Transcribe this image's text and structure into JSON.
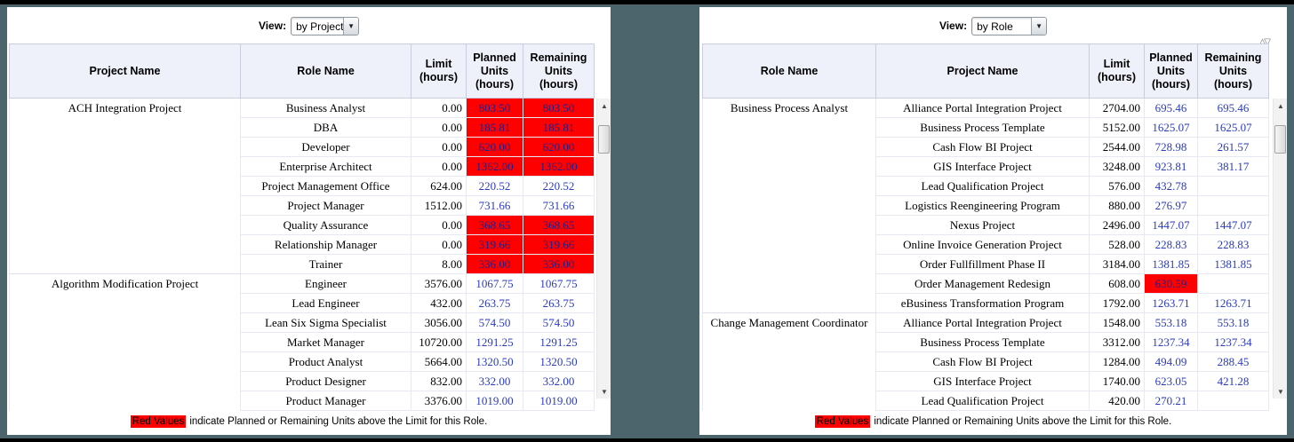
{
  "colors": {
    "page_background": "#4c656d",
    "alert_background": "#ff0000",
    "value_blue": "#2b3bc0",
    "header_background": "#eef1fa"
  },
  "legend": {
    "highlight": "Red Values",
    "text": "indicate Planned or Remaining Units above the Limit for this Role."
  },
  "scrollbar": {
    "up": "▲",
    "down": "▼"
  },
  "left_panel": {
    "view": {
      "label": "View:",
      "value": "by Project",
      "arrow": "▼"
    },
    "columns": {
      "group": "Project Name",
      "detail": "Role Name",
      "limit": "Limit\n(hours)",
      "planned": "Planned\nUnits\n(hours)",
      "remaining": "Remaining\nUnits\n(hours)"
    },
    "rows": [
      {
        "group": "ACH Integration Project",
        "detail": "Business Analyst",
        "limit": "0.00",
        "planned": "803.50",
        "remaining": "803.50",
        "planned_alert": true,
        "remaining_alert": true
      },
      {
        "group": "",
        "detail": "DBA",
        "limit": "0.00",
        "planned": "185.81",
        "remaining": "185.81",
        "planned_alert": true,
        "remaining_alert": true
      },
      {
        "group": "",
        "detail": "Developer",
        "limit": "0.00",
        "planned": "620.00",
        "remaining": "620.00",
        "planned_alert": true,
        "remaining_alert": true
      },
      {
        "group": "",
        "detail": "Enterprise Architect",
        "limit": "0.00",
        "planned": "1362.00",
        "remaining": "1362.00",
        "planned_alert": true,
        "remaining_alert": true
      },
      {
        "group": "",
        "detail": "Project Management Office",
        "limit": "624.00",
        "planned": "220.52",
        "remaining": "220.52"
      },
      {
        "group": "",
        "detail": "Project Manager",
        "limit": "1512.00",
        "planned": "731.66",
        "remaining": "731.66"
      },
      {
        "group": "",
        "detail": "Quality Assurance",
        "limit": "0.00",
        "planned": "368.65",
        "remaining": "368.65",
        "planned_alert": true,
        "remaining_alert": true
      },
      {
        "group": "",
        "detail": "Relationship Manager",
        "limit": "0.00",
        "planned": "319.66",
        "remaining": "319.66",
        "planned_alert": true,
        "remaining_alert": true
      },
      {
        "group": "",
        "detail": "Trainer",
        "limit": "8.00",
        "planned": "336.00",
        "remaining": "336.00",
        "planned_alert": true,
        "remaining_alert": true,
        "group_end": true
      },
      {
        "group": "Algorithm Modification Project",
        "detail": "Engineer",
        "limit": "3576.00",
        "planned": "1067.75",
        "remaining": "1067.75"
      },
      {
        "group": "",
        "detail": "Lead Engineer",
        "limit": "432.00",
        "planned": "263.75",
        "remaining": "263.75"
      },
      {
        "group": "",
        "detail": "Lean Six Sigma Specialist",
        "limit": "3056.00",
        "planned": "574.50",
        "remaining": "574.50"
      },
      {
        "group": "",
        "detail": "Market Manager",
        "limit": "10720.00",
        "planned": "1291.25",
        "remaining": "1291.25"
      },
      {
        "group": "",
        "detail": "Product Analyst",
        "limit": "5664.00",
        "planned": "1320.50",
        "remaining": "1320.50"
      },
      {
        "group": "",
        "detail": "Product Designer",
        "limit": "832.00",
        "planned": "332.00",
        "remaining": "332.00"
      },
      {
        "group": "",
        "detail": "Product Manager",
        "limit": "3376.00",
        "planned": "1019.00",
        "remaining": "1019.00"
      }
    ]
  },
  "right_panel": {
    "view": {
      "label": "View:",
      "value": "by Role",
      "arrow": "▼"
    },
    "sort_icons": "△▽",
    "columns": {
      "group": "Role Name",
      "detail": "Project Name",
      "limit": "Limit\n(hours)",
      "planned": "Planned\nUnits\n(hours)",
      "remaining": "Remaining\nUnits\n(hours)"
    },
    "rows": [
      {
        "group": "Business Process Analyst",
        "detail": "Alliance Portal Integration Project",
        "limit": "2704.00",
        "planned": "695.46",
        "remaining": "695.46"
      },
      {
        "group": "",
        "detail": "Business Process Template",
        "limit": "5152.00",
        "planned": "1625.07",
        "remaining": "1625.07"
      },
      {
        "group": "",
        "detail": "Cash Flow BI Project",
        "limit": "2544.00",
        "planned": "728.98",
        "remaining": "261.57"
      },
      {
        "group": "",
        "detail": "GIS Interface Project",
        "limit": "3248.00",
        "planned": "923.81",
        "remaining": "381.17"
      },
      {
        "group": "",
        "detail": "Lead Qualification Project",
        "limit": "576.00",
        "planned": "432.78",
        "remaining": ""
      },
      {
        "group": "",
        "detail": "Logistics Reengineering Program",
        "limit": "880.00",
        "planned": "276.97",
        "remaining": ""
      },
      {
        "group": "",
        "detail": "Nexus Project",
        "limit": "2496.00",
        "planned": "1447.07",
        "remaining": "1447.07"
      },
      {
        "group": "",
        "detail": "Online Invoice Generation Project",
        "limit": "528.00",
        "planned": "228.83",
        "remaining": "228.83"
      },
      {
        "group": "",
        "detail": "Order Fullfillment Phase II",
        "limit": "3184.00",
        "planned": "1381.85",
        "remaining": "1381.85"
      },
      {
        "group": "",
        "detail": "Order Management Redesign",
        "limit": "608.00",
        "planned": "630.59",
        "remaining": "",
        "planned_alert": true
      },
      {
        "group": "",
        "detail": "eBusiness Transformation Program",
        "limit": "1792.00",
        "planned": "1263.71",
        "remaining": "1263.71",
        "group_end": true
      },
      {
        "group": "Change Management Coordinator",
        "detail": "Alliance Portal Integration Project",
        "limit": "1548.00",
        "planned": "553.18",
        "remaining": "553.18"
      },
      {
        "group": "",
        "detail": "Business Process Template",
        "limit": "3312.00",
        "planned": "1237.34",
        "remaining": "1237.34"
      },
      {
        "group": "",
        "detail": "Cash Flow BI Project",
        "limit": "1284.00",
        "planned": "494.09",
        "remaining": "288.45"
      },
      {
        "group": "",
        "detail": "GIS Interface Project",
        "limit": "1740.00",
        "planned": "623.05",
        "remaining": "421.28"
      },
      {
        "group": "",
        "detail": "Lead Qualification Project",
        "limit": "420.00",
        "planned": "270.21",
        "remaining": ""
      }
    ]
  }
}
